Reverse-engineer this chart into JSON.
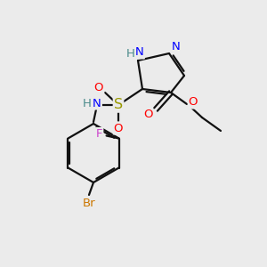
{
  "background_color": "#ebebeb",
  "atom_colors": {
    "N": "#0000ff",
    "O": "#ff0000",
    "S": "#999900",
    "F": "#cc44cc",
    "Br": "#cc7700",
    "C": "#000000",
    "H": "#4a8a8a"
  },
  "font_size": 9.5,
  "bond_color": "#111111",
  "bond_width": 1.6,
  "figsize": [
    3.0,
    3.0
  ],
  "dpi": 100
}
